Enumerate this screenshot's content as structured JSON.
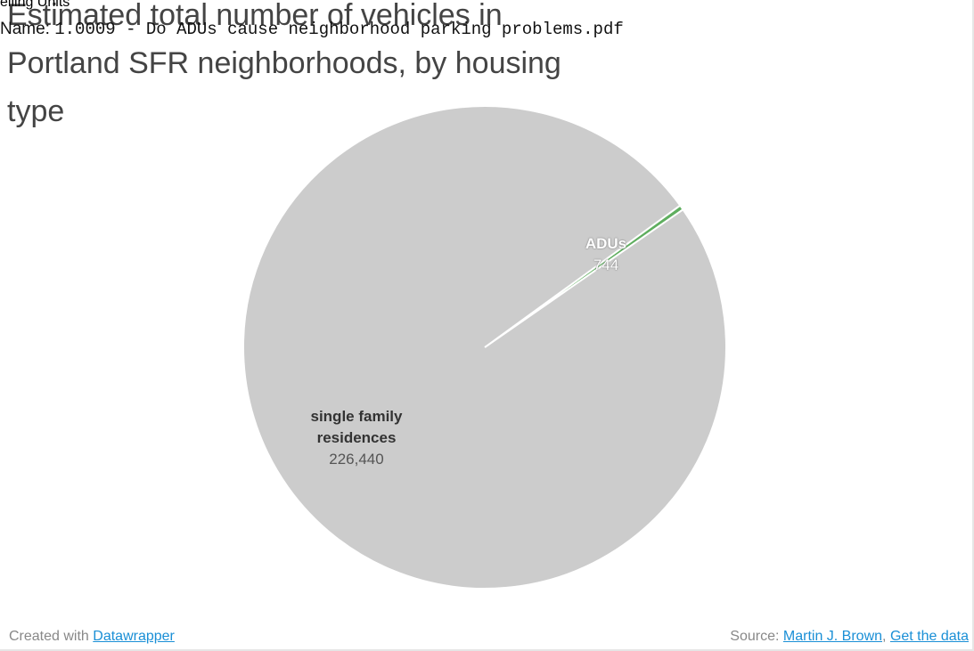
{
  "header_overlay": {
    "line1": "elling Units",
    "label": "Name:",
    "filename": "1.0009 - Do ADUs cause neighborhood parking problems.pdf"
  },
  "chart_data": {
    "type": "pie",
    "title": "Estimated total number of vehicles in Portland SFR neighborhoods, by housing type",
    "categories": [
      "ADUs",
      "single family residences"
    ],
    "values": [
      744,
      226440
    ],
    "value_labels": [
      "744",
      "226,440"
    ],
    "colors": [
      "#5fae5f",
      "#cccccc"
    ]
  },
  "footer": {
    "created_prefix": "Created with",
    "created_link": "Datawrapper",
    "source_prefix": "Source:",
    "source_links": [
      "Martin J. Brown",
      "Get the data"
    ],
    "separator": ","
  }
}
